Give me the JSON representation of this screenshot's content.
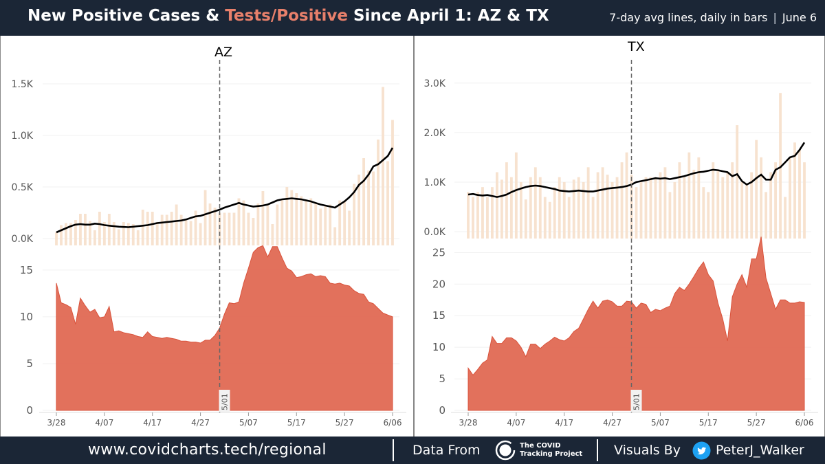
{
  "header": {
    "title_part1": "New Positive Cases & ",
    "title_accent": "Tests/Positive",
    "title_part2": " Since April 1: AZ & TX",
    "subtitle_left": "7-day avg lines, daily in bars",
    "subtitle_sep": "|",
    "subtitle_right": "June 6"
  },
  "footer": {
    "url": "www.covidcharts.tech/regional",
    "data_from": "Data From",
    "ctp_name": "The COVID\nTracking Project",
    "visuals_by": "Visuals By",
    "twitter_handle": "PeterJ_Walker"
  },
  "colors": {
    "header_bg": "#1b2636",
    "accent": "#e8806b",
    "bars": "#f7e2cf",
    "area": "#e06650",
    "line": "#000000"
  },
  "icons": [
    "ctp-logo-icon",
    "twitter-icon"
  ],
  "chart_data": [
    {
      "type": "bar+line",
      "panel": "AZ",
      "title": "AZ",
      "metric": "New Positive Cases",
      "x": [
        "3/28",
        "3/29",
        "3/30",
        "3/31",
        "4/01",
        "4/02",
        "4/03",
        "4/04",
        "4/05",
        "4/06",
        "4/07",
        "4/08",
        "4/09",
        "4/10",
        "4/11",
        "4/12",
        "4/13",
        "4/14",
        "4/15",
        "4/16",
        "4/17",
        "4/18",
        "4/19",
        "4/20",
        "4/21",
        "4/22",
        "4/23",
        "4/24",
        "4/25",
        "4/26",
        "4/27",
        "4/28",
        "4/29",
        "4/30",
        "5/01",
        "5/02",
        "5/03",
        "5/04",
        "5/05",
        "5/06",
        "5/07",
        "5/08",
        "5/09",
        "5/10",
        "5/11",
        "5/12",
        "5/13",
        "5/14",
        "5/15",
        "5/16",
        "5/17",
        "5/18",
        "5/19",
        "5/20",
        "5/21",
        "5/22",
        "5/23",
        "5/24",
        "5/25",
        "5/26",
        "5/27",
        "5/28",
        "5/29",
        "5/30",
        "5/31",
        "6/01",
        "6/02",
        "6/03",
        "6/04",
        "6/05",
        "6/06"
      ],
      "bars": [
        60,
        130,
        150,
        150,
        180,
        240,
        240,
        170,
        80,
        260,
        160,
        240,
        160,
        90,
        160,
        150,
        140,
        80,
        280,
        260,
        260,
        160,
        230,
        230,
        260,
        330,
        230,
        180,
        170,
        270,
        150,
        470,
        340,
        300,
        250,
        250,
        250,
        250,
        390,
        370,
        250,
        200,
        340,
        460,
        320,
        140,
        330,
        370,
        500,
        470,
        440,
        410,
        380,
        390,
        350,
        290,
        320,
        330,
        110,
        370,
        360,
        270,
        530,
        620,
        780,
        660,
        650,
        960,
        1470,
        750,
        1150
      ],
      "line_7day_avg": [
        60,
        80,
        100,
        120,
        135,
        140,
        135,
        135,
        145,
        140,
        130,
        125,
        120,
        115,
        112,
        110,
        115,
        120,
        125,
        130,
        140,
        150,
        155,
        160,
        165,
        170,
        175,
        185,
        200,
        215,
        220,
        235,
        250,
        265,
        280,
        300,
        315,
        330,
        345,
        330,
        320,
        310,
        315,
        320,
        330,
        350,
        370,
        380,
        385,
        390,
        385,
        380,
        370,
        360,
        345,
        330,
        320,
        310,
        300,
        330,
        360,
        400,
        450,
        520,
        560,
        620,
        700,
        720,
        760,
        800,
        880
      ],
      "xlim": [
        "3/28",
        "6/06"
      ],
      "x_tick_labels": [
        "3/28",
        "4/07",
        "4/17",
        "4/27",
        "5/07",
        "5/17",
        "5/27",
        "6/06"
      ],
      "ylim": [
        0,
        1700
      ],
      "y_ticks": [
        0,
        500,
        1000,
        1500
      ],
      "y_tick_labels": [
        "0.0K",
        "0.5K",
        "1.0K",
        "1.5K"
      ],
      "annotation": {
        "x": "5/01",
        "label": "5/01"
      }
    },
    {
      "type": "area",
      "panel": "AZ",
      "metric": "Tests/Positive",
      "x": [
        "3/28",
        "3/29",
        "3/30",
        "3/31",
        "4/01",
        "4/02",
        "4/03",
        "4/04",
        "4/05",
        "4/06",
        "4/07",
        "4/08",
        "4/09",
        "4/10",
        "4/11",
        "4/12",
        "4/13",
        "4/14",
        "4/15",
        "4/16",
        "4/17",
        "4/18",
        "4/19",
        "4/20",
        "4/21",
        "4/22",
        "4/23",
        "4/24",
        "4/25",
        "4/26",
        "4/27",
        "4/28",
        "4/29",
        "4/30",
        "5/01",
        "5/02",
        "5/03",
        "5/04",
        "5/05",
        "5/06",
        "5/07",
        "5/08",
        "5/09",
        "5/10",
        "5/11",
        "5/12",
        "5/13",
        "5/14",
        "5/15",
        "5/16",
        "5/17",
        "5/18",
        "5/19",
        "5/20",
        "5/21",
        "5/22",
        "5/23",
        "5/24",
        "5/25",
        "5/26",
        "5/27",
        "5/28",
        "5/29",
        "5/30",
        "5/31",
        "6/01",
        "6/02",
        "6/03",
        "6/04",
        "6/05",
        "6/06"
      ],
      "values": [
        13.6,
        11.5,
        11.3,
        11.0,
        9.2,
        12.0,
        11.2,
        10.5,
        10.8,
        9.9,
        10.0,
        11.1,
        8.4,
        8.5,
        8.3,
        8.2,
        8.1,
        7.9,
        7.8,
        8.4,
        7.9,
        7.8,
        7.7,
        7.8,
        7.7,
        7.6,
        7.4,
        7.4,
        7.3,
        7.3,
        7.2,
        7.5,
        7.5,
        8.0,
        8.8,
        10.3,
        11.5,
        11.4,
        11.6,
        13.6,
        15.2,
        16.9,
        17.4,
        17.6,
        16.4,
        17.5,
        17.5,
        16.3,
        15.2,
        14.9,
        14.2,
        14.3,
        14.5,
        14.6,
        14.3,
        14.4,
        14.3,
        13.6,
        13.5,
        13.6,
        13.4,
        13.3,
        12.8,
        12.5,
        12.4,
        11.6,
        11.4,
        10.9,
        10.4,
        10.2,
        10.0
      ],
      "xlim": [
        "3/28",
        "6/06"
      ],
      "ylim": [
        0,
        18
      ],
      "y_ticks": [
        0,
        5,
        10,
        15
      ],
      "y_tick_labels": [
        "0",
        "5",
        "10",
        "15"
      ],
      "x_tick_labels": [
        "3/28",
        "4/07",
        "4/17",
        "4/27",
        "5/07",
        "5/17",
        "5/27",
        "6/06"
      ]
    },
    {
      "type": "bar+line",
      "panel": "TX",
      "title": "TX",
      "metric": "New Positive Cases",
      "x": [
        "3/28",
        "3/29",
        "3/30",
        "3/31",
        "4/01",
        "4/02",
        "4/03",
        "4/04",
        "4/05",
        "4/06",
        "4/07",
        "4/08",
        "4/09",
        "4/10",
        "4/11",
        "4/12",
        "4/13",
        "4/14",
        "4/15",
        "4/16",
        "4/17",
        "4/18",
        "4/19",
        "4/20",
        "4/21",
        "4/22",
        "4/23",
        "4/24",
        "4/25",
        "4/26",
        "4/27",
        "4/28",
        "4/29",
        "4/30",
        "5/01",
        "5/02",
        "5/03",
        "5/04",
        "5/05",
        "5/06",
        "5/07",
        "5/08",
        "5/09",
        "5/10",
        "5/11",
        "5/12",
        "5/13",
        "5/14",
        "5/15",
        "5/16",
        "5/17",
        "5/18",
        "5/19",
        "5/20",
        "5/21",
        "5/22",
        "5/23",
        "5/24",
        "5/25",
        "5/26",
        "5/27",
        "5/28",
        "5/29",
        "5/30",
        "5/31",
        "6/01",
        "6/02",
        "6/03",
        "6/04",
        "6/05",
        "6/06"
      ],
      "bars": [
        800,
        700,
        800,
        900,
        700,
        900,
        1200,
        1050,
        1400,
        1100,
        1600,
        1000,
        650,
        1100,
        1300,
        1100,
        700,
        600,
        900,
        1100,
        1000,
        700,
        1050,
        1100,
        1000,
        1300,
        700,
        1200,
        1300,
        1150,
        1000,
        1100,
        1400,
        1600,
        1150,
        900,
        1000,
        1100,
        1100,
        1100,
        1200,
        1300,
        800,
        1000,
        1400,
        1100,
        1600,
        1250,
        1500,
        900,
        800,
        1400,
        1250,
        1100,
        1200,
        1400,
        2150,
        1000,
        950,
        1200,
        1850,
        1500,
        800,
        1200,
        1400,
        2800,
        700,
        1500,
        1800,
        1650,
        1400
      ],
      "line_7day_avg": [
        750,
        760,
        740,
        730,
        740,
        720,
        700,
        720,
        750,
        800,
        840,
        870,
        900,
        920,
        930,
        920,
        900,
        880,
        860,
        830,
        820,
        810,
        820,
        830,
        820,
        810,
        810,
        830,
        850,
        870,
        880,
        890,
        900,
        920,
        950,
        1000,
        1020,
        1040,
        1060,
        1080,
        1070,
        1080,
        1060,
        1080,
        1100,
        1120,
        1150,
        1180,
        1200,
        1210,
        1230,
        1250,
        1240,
        1220,
        1200,
        1120,
        1160,
        1020,
        950,
        1000,
        1080,
        1150,
        1050,
        1050,
        1250,
        1300,
        1400,
        1500,
        1530,
        1650,
        1800
      ],
      "xlim": [
        "3/28",
        "6/06"
      ],
      "x_tick_labels": [
        "3/28",
        "4/07",
        "4/17",
        "4/27",
        "5/07",
        "5/17",
        "5/27",
        "6/06"
      ],
      "y_ticks": [
        0,
        1000,
        2000,
        3000
      ],
      "y_tick_labels": [
        "0.0K",
        "1.0K",
        "2.0K",
        "3.0K"
      ],
      "ylim": [
        0,
        3400
      ],
      "annotation": {
        "x": "5/01",
        "label": "5/01"
      }
    },
    {
      "type": "area",
      "panel": "TX",
      "metric": "Tests/Positive",
      "x": [
        "3/28",
        "3/29",
        "3/30",
        "3/31",
        "4/01",
        "4/02",
        "4/03",
        "4/04",
        "4/05",
        "4/06",
        "4/07",
        "4/08",
        "4/09",
        "4/10",
        "4/11",
        "4/12",
        "4/13",
        "4/14",
        "4/15",
        "4/16",
        "4/17",
        "4/18",
        "4/19",
        "4/20",
        "4/21",
        "4/22",
        "4/23",
        "4/24",
        "4/25",
        "4/26",
        "4/27",
        "4/28",
        "4/29",
        "4/30",
        "5/01",
        "5/02",
        "5/03",
        "5/04",
        "5/05",
        "5/06",
        "5/07",
        "5/08",
        "5/09",
        "5/10",
        "5/11",
        "5/12",
        "5/13",
        "5/14",
        "5/15",
        "5/16",
        "5/17",
        "5/18",
        "5/19",
        "5/20",
        "5/21",
        "5/22",
        "5/23",
        "5/24",
        "5/25",
        "5/26",
        "5/27",
        "5/28",
        "5/29",
        "5/30",
        "5/31",
        "6/01",
        "6/02",
        "6/03",
        "6/04",
        "6/05",
        "6/06"
      ],
      "values": [
        6.7,
        5.6,
        6.5,
        7.5,
        8.0,
        11.7,
        10.6,
        10.6,
        11.5,
        11.5,
        11.0,
        10.0,
        8.5,
        10.5,
        10.5,
        9.8,
        10.5,
        11.0,
        11.6,
        11.2,
        11.0,
        11.5,
        12.5,
        13.0,
        14.5,
        16.0,
        17.3,
        16.2,
        17.3,
        17.5,
        17.2,
        16.5,
        16.5,
        17.3,
        17.2,
        16.2,
        17.0,
        16.8,
        15.5,
        16.0,
        15.8,
        16.2,
        16.5,
        18.5,
        19.5,
        19.0,
        20.0,
        21.2,
        22.5,
        23.5,
        21.5,
        20.5,
        17.0,
        14.5,
        11.0,
        18.0,
        20.0,
        21.5,
        19.5,
        24.0,
        24.0,
        27.5,
        21.0,
        18.5,
        16.0,
        17.5,
        17.5,
        17.0,
        17.0,
        17.2,
        17.1
      ],
      "xlim": [
        "3/28",
        "6/06"
      ],
      "ylim": [
        0,
        27
      ],
      "y_ticks": [
        0,
        5,
        10,
        15,
        20,
        25
      ],
      "y_tick_labels": [
        "0",
        "5",
        "10",
        "15",
        "20",
        "25"
      ],
      "x_tick_labels": [
        "3/28",
        "4/07",
        "4/17",
        "4/27",
        "5/07",
        "5/17",
        "5/27",
        "6/06"
      ]
    }
  ]
}
